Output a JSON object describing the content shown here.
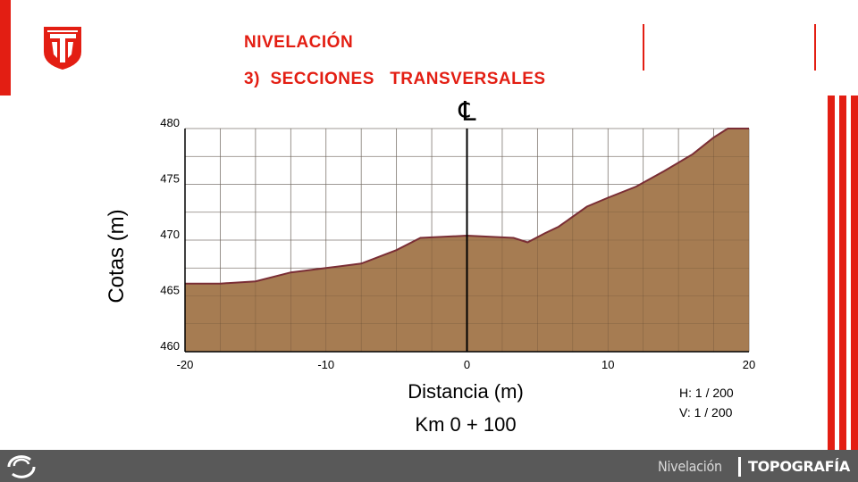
{
  "header": {
    "title_line1": "NIVELACIÓN",
    "title_line2": "3)  SECCIONES   TRANSVERSALES"
  },
  "footer": {
    "section": "Nivelación",
    "course": "TOPOGRAFÍA"
  },
  "colors": {
    "accent": "#e31e13",
    "terrain_fill": "#a67c52",
    "terrain_line": "#7a2e35",
    "footer_bg": "#595959"
  },
  "chart_data": {
    "type": "area",
    "title": "",
    "centerline_label": "℄",
    "xlabel": "Distancia (m)",
    "subtitle": "Km 0 + 100",
    "ylabel": "Cotas (m)",
    "xlim": [
      -20,
      20
    ],
    "ylim": [
      460,
      480
    ],
    "x_ticks": [
      -20,
      -10,
      0,
      10,
      20
    ],
    "y_ticks": [
      460,
      465,
      470,
      475,
      480
    ],
    "grid": true,
    "scale_h": "H: 1 / 200",
    "scale_v": "V: 1 / 200",
    "x": [
      -20,
      -17.5,
      -15,
      -12.5,
      -10,
      -7.5,
      -5,
      -3.3,
      0,
      3.3,
      4.3,
      5.5,
      6.5,
      8.5,
      10,
      12,
      14,
      16,
      17.5,
      18.5
    ],
    "y": [
      466.1,
      466.1,
      466.3,
      467.1,
      467.5,
      467.9,
      469.1,
      470.2,
      470.4,
      470.2,
      469.8,
      470.6,
      471.2,
      473.0,
      473.8,
      474.8,
      476.2,
      477.7,
      479.2,
      480.0
    ]
  }
}
